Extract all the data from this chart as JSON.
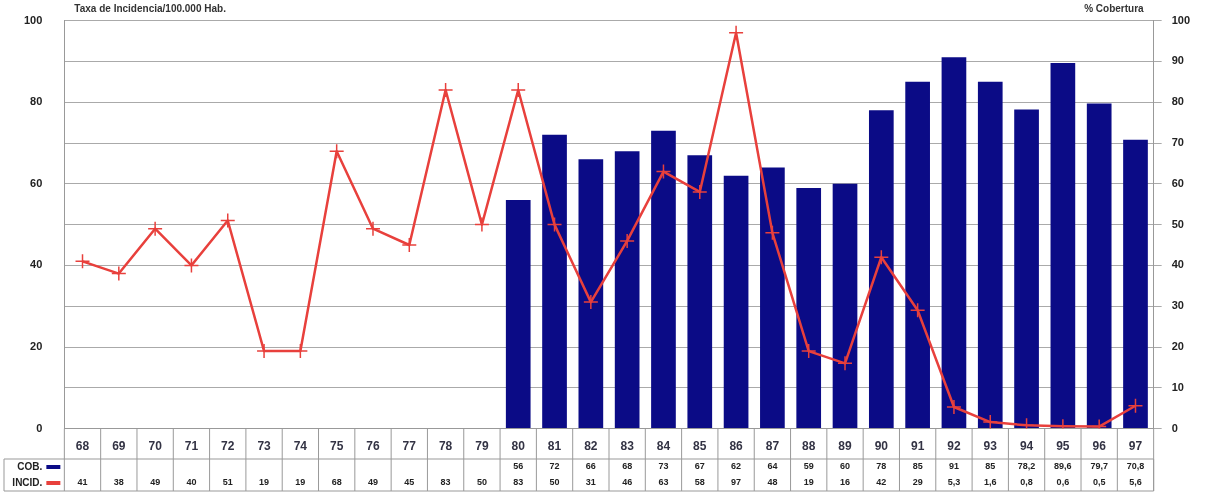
{
  "chart_data": {
    "type": "bar",
    "ylabel": "Taxa de Incidencia/100.000 Hab.",
    "y2label": "% Cobertura",
    "categories": [
      "68",
      "69",
      "70",
      "71",
      "72",
      "73",
      "74",
      "75",
      "76",
      "77",
      "78",
      "79",
      "80",
      "81",
      "82",
      "83",
      "84",
      "85",
      "86",
      "87",
      "88",
      "89",
      "90",
      "91",
      "92",
      "93",
      "94",
      "95",
      "96",
      "97"
    ],
    "series": [
      {
        "name": "COB.",
        "axis": "y2",
        "color": "#0b0b86",
        "values": [
          null,
          null,
          null,
          null,
          null,
          null,
          null,
          null,
          null,
          null,
          null,
          null,
          56,
          72,
          66,
          68,
          73,
          67,
          62,
          64,
          59,
          60,
          78,
          85,
          91,
          85,
          78.2,
          89.6,
          79.7,
          70.8
        ],
        "value_labels": [
          null,
          null,
          null,
          null,
          null,
          null,
          null,
          null,
          null,
          null,
          null,
          null,
          "56",
          "72",
          "66",
          "68",
          "73",
          "67",
          "62",
          "64",
          "59",
          "60",
          "78",
          "85",
          "91",
          "85",
          "78,2",
          "89,6",
          "79,7",
          "70,8"
        ]
      },
      {
        "name": "INCID.",
        "type": "line",
        "axis": "y",
        "color": "#e8403c",
        "values": [
          41,
          38,
          49,
          40,
          51,
          19,
          19,
          68,
          49,
          45,
          83,
          50,
          83,
          50,
          31,
          46,
          63,
          58,
          97,
          48,
          19,
          16,
          42,
          29,
          5.3,
          1.6,
          0.8,
          0.6,
          0.5,
          5.6
        ],
        "value_labels": [
          "41",
          "38",
          "49",
          "40",
          "51",
          "19",
          "19",
          "68",
          "49",
          "45",
          "83",
          "50",
          "83",
          "50",
          "31",
          "46",
          "63",
          "58",
          "97",
          "48",
          "19",
          "16",
          "42",
          "29",
          "5,3",
          "1,6",
          "0,8",
          "0,6",
          "0,5",
          "5,6"
        ]
      }
    ],
    "ylim": [
      0,
      100
    ],
    "yticks": [
      0,
      20,
      40,
      60,
      80,
      100
    ],
    "y2lim": [
      0,
      100
    ],
    "y2ticks": [
      0,
      10,
      20,
      30,
      40,
      50,
      60,
      70,
      80,
      90,
      100
    ],
    "grid": true,
    "legend": "bottom",
    "marker": "cross",
    "line_style": "solid"
  }
}
